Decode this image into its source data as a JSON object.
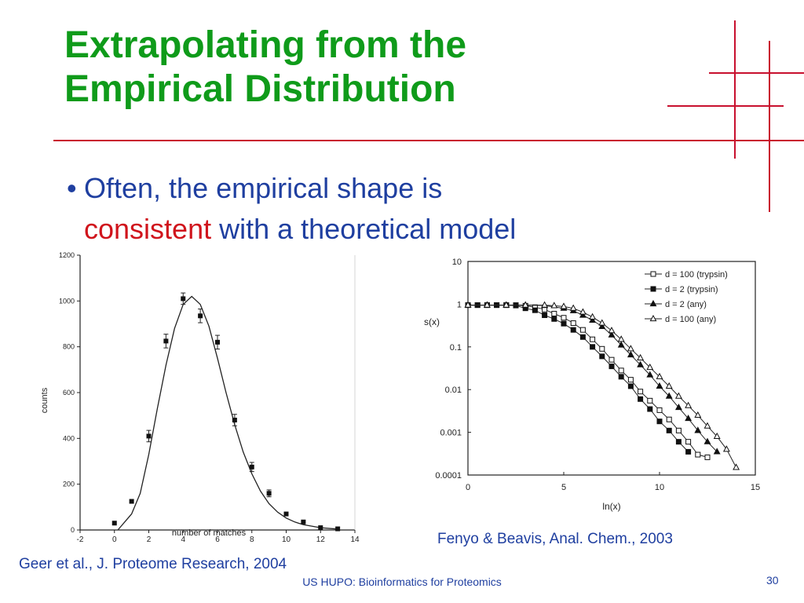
{
  "slide": {
    "title_lines": [
      "Extrapolating from the",
      "Empirical Distribution"
    ],
    "bullet": {
      "line1": "Often, the empirical shape is",
      "emphasis": "consistent",
      "line2_rest": " with a theoretical model"
    },
    "caption_left": "Geer et al., J. Proteome Research, 2004",
    "caption_right": "Fenyo & Beavis, Anal. Chem., 2003",
    "footer": "US HUPO: Bioinformatics for Proteomics",
    "page_number": "30",
    "colors": {
      "title": "#0f9b1a",
      "text": "#1f3fa0",
      "emphasis": "#d0141c",
      "decoration": "#c8102e"
    }
  },
  "chart_data": [
    {
      "type": "scatter",
      "xlabel": "number of matches",
      "ylabel": "counts",
      "xlim": [
        -2,
        14
      ],
      "ylim": [
        0,
        1200
      ],
      "xticks": [
        "-2",
        "0",
        "2",
        "4",
        "6",
        "8",
        "10",
        "12",
        "14"
      ],
      "yticks": [
        "0",
        "200",
        "400",
        "600",
        "800",
        "1000",
        "1200"
      ],
      "points": [
        {
          "x": 0,
          "y": 30
        },
        {
          "x": 1,
          "y": 125
        },
        {
          "x": 2,
          "y": 410
        },
        {
          "x": 3,
          "y": 825
        },
        {
          "x": 4,
          "y": 1010
        },
        {
          "x": 5,
          "y": 935
        },
        {
          "x": 6,
          "y": 820
        },
        {
          "x": 7,
          "y": 480
        },
        {
          "x": 8,
          "y": 275
        },
        {
          "x": 9,
          "y": 160
        },
        {
          "x": 10,
          "y": 70
        },
        {
          "x": 11,
          "y": 35
        },
        {
          "x": 12,
          "y": 10
        },
        {
          "x": 13,
          "y": 5
        }
      ],
      "error_bars": [
        {
          "x": 2,
          "y": 410,
          "err": 25
        },
        {
          "x": 3,
          "y": 825,
          "err": 30
        },
        {
          "x": 4,
          "y": 1010,
          "err": 25
        },
        {
          "x": 5,
          "y": 935,
          "err": 30
        },
        {
          "x": 6,
          "y": 820,
          "err": 30
        },
        {
          "x": 7,
          "y": 480,
          "err": 25
        },
        {
          "x": 8,
          "y": 275,
          "err": 20
        },
        {
          "x": 9,
          "y": 160,
          "err": 15
        }
      ],
      "fit_curve": [
        {
          "x": 0.2,
          "y": 0
        },
        {
          "x": 1,
          "y": 70
        },
        {
          "x": 1.5,
          "y": 160
        },
        {
          "x": 2,
          "y": 330
        },
        {
          "x": 2.5,
          "y": 530
        },
        {
          "x": 3,
          "y": 720
        },
        {
          "x": 3.5,
          "y": 880
        },
        {
          "x": 4,
          "y": 985
        },
        {
          "x": 4.5,
          "y": 1020
        },
        {
          "x": 5,
          "y": 985
        },
        {
          "x": 5.5,
          "y": 890
        },
        {
          "x": 6,
          "y": 750
        },
        {
          "x": 6.5,
          "y": 600
        },
        {
          "x": 7,
          "y": 460
        },
        {
          "x": 7.5,
          "y": 340
        },
        {
          "x": 8,
          "y": 245
        },
        {
          "x": 8.5,
          "y": 170
        },
        {
          "x": 9,
          "y": 115
        },
        {
          "x": 9.5,
          "y": 78
        },
        {
          "x": 10,
          "y": 52
        },
        {
          "x": 10.5,
          "y": 35
        },
        {
          "x": 11,
          "y": 23
        },
        {
          "x": 12,
          "y": 10
        },
        {
          "x": 13,
          "y": 4
        }
      ]
    },
    {
      "type": "line",
      "xlabel": "ln(x)",
      "ylabel": "s(x)",
      "xlim": [
        0,
        15
      ],
      "ylim": [
        0.0001,
        10
      ],
      "yscale": "log",
      "xticks": [
        "0",
        "5",
        "10",
        "15"
      ],
      "yticks": [
        "0.0001",
        "0.001",
        "0.01",
        "0.1",
        "1",
        "10"
      ],
      "legend_position": "top-right",
      "series": [
        {
          "name": "d = 100 (trypsin)",
          "marker": "square-open",
          "points": [
            {
              "x": 0,
              "y": 0.95
            },
            {
              "x": 0.5,
              "y": 0.95
            },
            {
              "x": 1,
              "y": 0.95
            },
            {
              "x": 1.5,
              "y": 0.95
            },
            {
              "x": 2,
              "y": 0.95
            },
            {
              "x": 2.5,
              "y": 0.95
            },
            {
              "x": 3,
              "y": 0.92
            },
            {
              "x": 3.5,
              "y": 0.85
            },
            {
              "x": 4,
              "y": 0.75
            },
            {
              "x": 4.5,
              "y": 0.6
            },
            {
              "x": 5,
              "y": 0.48
            },
            {
              "x": 5.5,
              "y": 0.36
            },
            {
              "x": 6,
              "y": 0.25
            },
            {
              "x": 6.5,
              "y": 0.15
            },
            {
              "x": 7,
              "y": 0.09
            },
            {
              "x": 7.5,
              "y": 0.05
            },
            {
              "x": 8,
              "y": 0.028
            },
            {
              "x": 8.5,
              "y": 0.017
            },
            {
              "x": 9,
              "y": 0.009
            },
            {
              "x": 9.5,
              "y": 0.0055
            },
            {
              "x": 10,
              "y": 0.0033
            },
            {
              "x": 10.5,
              "y": 0.002
            },
            {
              "x": 11,
              "y": 0.0011
            },
            {
              "x": 11.5,
              "y": 0.0006
            },
            {
              "x": 12,
              "y": 0.0003
            },
            {
              "x": 12.5,
              "y": 0.00026
            }
          ]
        },
        {
          "name": "d = 2 (trypsin)",
          "marker": "square-filled",
          "points": [
            {
              "x": 0,
              "y": 0.95
            },
            {
              "x": 0.5,
              "y": 0.95
            },
            {
              "x": 1,
              "y": 0.95
            },
            {
              "x": 1.5,
              "y": 0.95
            },
            {
              "x": 2,
              "y": 0.95
            },
            {
              "x": 2.5,
              "y": 0.93
            },
            {
              "x": 3,
              "y": 0.8
            },
            {
              "x": 3.5,
              "y": 0.72
            },
            {
              "x": 4,
              "y": 0.55
            },
            {
              "x": 4.5,
              "y": 0.45
            },
            {
              "x": 5,
              "y": 0.35
            },
            {
              "x": 5.5,
              "y": 0.25
            },
            {
              "x": 6,
              "y": 0.17
            },
            {
              "x": 6.5,
              "y": 0.1
            },
            {
              "x": 7,
              "y": 0.06
            },
            {
              "x": 7.5,
              "y": 0.035
            },
            {
              "x": 8,
              "y": 0.02
            },
            {
              "x": 8.5,
              "y": 0.012
            },
            {
              "x": 9,
              "y": 0.006
            },
            {
              "x": 9.5,
              "y": 0.0035
            },
            {
              "x": 10,
              "y": 0.0018
            },
            {
              "x": 10.5,
              "y": 0.0011
            },
            {
              "x": 11,
              "y": 0.0006
            },
            {
              "x": 11.5,
              "y": 0.00035
            }
          ]
        },
        {
          "name": "d = 2 (any)",
          "marker": "triangle-filled",
          "points": [
            {
              "x": 0,
              "y": 0.95
            },
            {
              "x": 1,
              "y": 0.95
            },
            {
              "x": 2,
              "y": 0.95
            },
            {
              "x": 3,
              "y": 0.95
            },
            {
              "x": 4,
              "y": 0.93
            },
            {
              "x": 5,
              "y": 0.8
            },
            {
              "x": 5.5,
              "y": 0.7
            },
            {
              "x": 6,
              "y": 0.55
            },
            {
              "x": 6.5,
              "y": 0.42
            },
            {
              "x": 7,
              "y": 0.3
            },
            {
              "x": 7.5,
              "y": 0.19
            },
            {
              "x": 8,
              "y": 0.11
            },
            {
              "x": 8.5,
              "y": 0.065
            },
            {
              "x": 9,
              "y": 0.038
            },
            {
              "x": 9.5,
              "y": 0.022
            },
            {
              "x": 10,
              "y": 0.012
            },
            {
              "x": 10.5,
              "y": 0.007
            },
            {
              "x": 11,
              "y": 0.0038
            },
            {
              "x": 11.5,
              "y": 0.0021
            },
            {
              "x": 12,
              "y": 0.0011
            },
            {
              "x": 12.5,
              "y": 0.0006
            },
            {
              "x": 13,
              "y": 0.00035
            }
          ]
        },
        {
          "name": "d = 100 (any)",
          "marker": "triangle-open",
          "points": [
            {
              "x": 0,
              "y": 0.95
            },
            {
              "x": 1,
              "y": 0.95
            },
            {
              "x": 2,
              "y": 0.95
            },
            {
              "x": 3,
              "y": 0.95
            },
            {
              "x": 4,
              "y": 0.95
            },
            {
              "x": 4.5,
              "y": 0.92
            },
            {
              "x": 5,
              "y": 0.88
            },
            {
              "x": 5.5,
              "y": 0.8
            },
            {
              "x": 6,
              "y": 0.65
            },
            {
              "x": 6.5,
              "y": 0.5
            },
            {
              "x": 7,
              "y": 0.36
            },
            {
              "x": 7.5,
              "y": 0.24
            },
            {
              "x": 8,
              "y": 0.15
            },
            {
              "x": 8.5,
              "y": 0.09
            },
            {
              "x": 9,
              "y": 0.055
            },
            {
              "x": 9.5,
              "y": 0.033
            },
            {
              "x": 10,
              "y": 0.02
            },
            {
              "x": 10.5,
              "y": 0.012
            },
            {
              "x": 11,
              "y": 0.007
            },
            {
              "x": 11.5,
              "y": 0.0042
            },
            {
              "x": 12,
              "y": 0.0025
            },
            {
              "x": 12.5,
              "y": 0.0014
            },
            {
              "x": 13,
              "y": 0.0008
            },
            {
              "x": 13.5,
              "y": 0.0004
            },
            {
              "x": 14,
              "y": 0.00015
            }
          ]
        }
      ]
    }
  ]
}
